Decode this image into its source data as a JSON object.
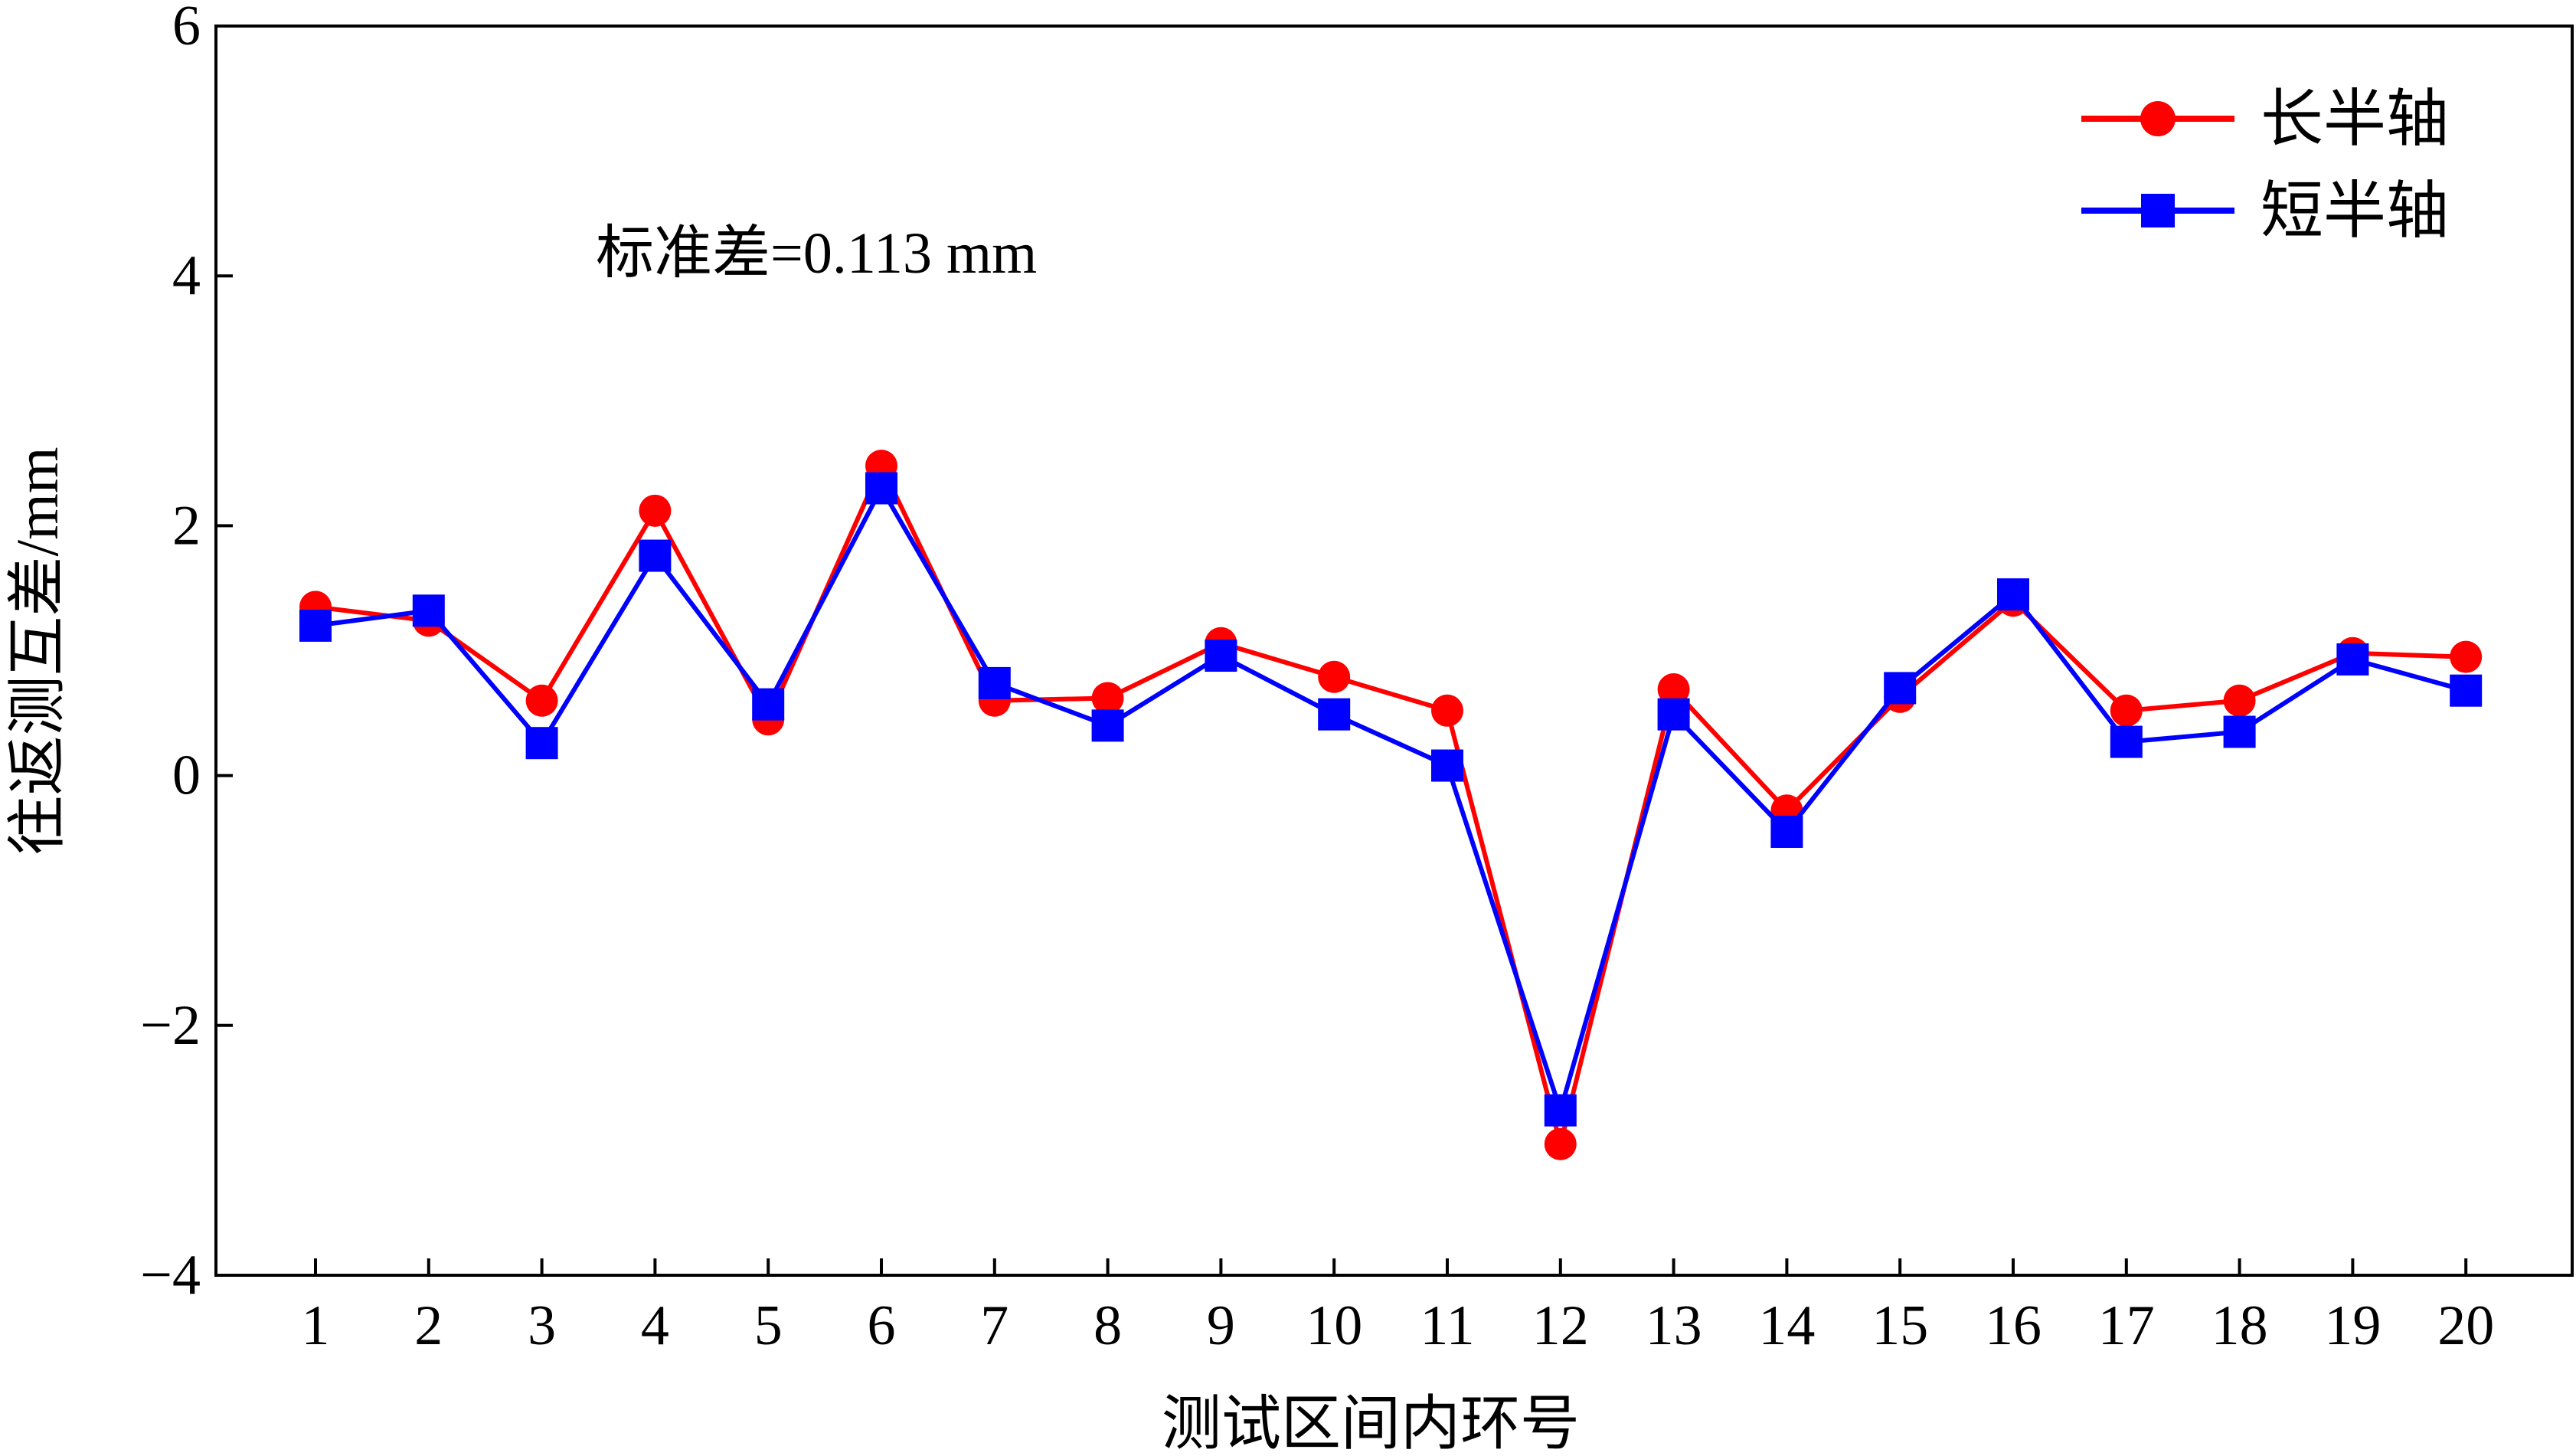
{
  "chart_data": {
    "type": "line",
    "title": "",
    "xlabel": "测试区间内环号",
    "ylabel": "往返测互差/mm",
    "ylim": [
      -4,
      6
    ],
    "yticks": [
      -4,
      -2,
      0,
      2,
      4,
      6
    ],
    "ytick_labels": [
      "−4",
      "−2",
      "0",
      "2",
      "4",
      "6"
    ],
    "categories": [
      "1",
      "2",
      "3",
      "4",
      "5",
      "6",
      "7",
      "8",
      "9",
      "10",
      "11",
      "12",
      "13",
      "14",
      "15",
      "16",
      "17",
      "18",
      "19",
      "20"
    ],
    "annotation": "标准差=0.113 mm",
    "legend_position": "top-right",
    "grid": false,
    "series": [
      {
        "name": "长半轴",
        "color": "#ff0000",
        "marker": "circle",
        "values": [
          1.35,
          1.24,
          0.6,
          2.12,
          0.45,
          2.48,
          0.6,
          0.62,
          1.06,
          0.79,
          0.52,
          -2.95,
          0.69,
          -0.28,
          0.63,
          1.4,
          0.52,
          0.6,
          0.98,
          0.95
        ]
      },
      {
        "name": "短半轴",
        "color": "#0000ff",
        "marker": "square",
        "values": [
          1.2,
          1.32,
          0.26,
          1.76,
          0.57,
          2.3,
          0.74,
          0.4,
          0.96,
          0.49,
          0.08,
          -2.68,
          0.49,
          -0.45,
          0.7,
          1.45,
          0.27,
          0.35,
          0.93,
          0.68
        ]
      }
    ]
  }
}
